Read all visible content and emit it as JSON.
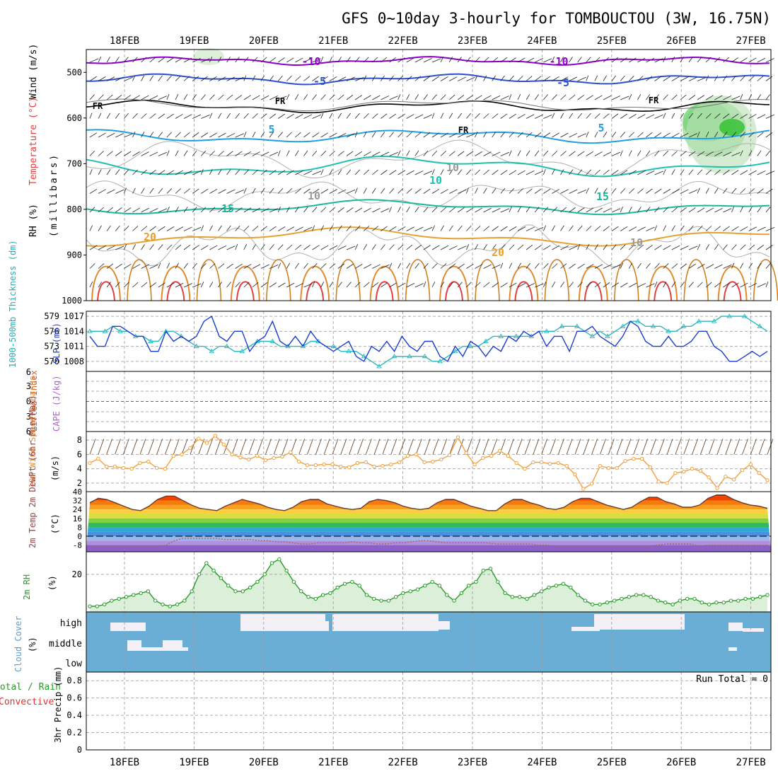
{
  "title": "GFS 0~10day 3-hourly for TOMBOUCTOU (3W, 16.75N)",
  "dates": [
    "18FEB",
    "19FEB",
    "20FEB",
    "21FEB",
    "22FEB",
    "23FEB",
    "24FEB",
    "25FEB",
    "26FEB",
    "27FEB"
  ],
  "colors": {
    "rh_shade": "#a8d5a0",
    "temp_cold": "#8b00c8",
    "temp_blue": "#2c4fd0",
    "temp_cyan": "#1f9fe0",
    "temp_teal": "#20c0b0",
    "temp_orange": "#e8a030",
    "temp_red": "#e02020",
    "slp": "#1a3cd0",
    "thickness": "#28b8c0",
    "wind_speed": "#f0a040",
    "cloud_bg": "#6aaed6",
    "cloud_clear": "#f4f0f8",
    "rh2m": "#2a9a2a",
    "lifted_zero": "#e03030"
  },
  "panels": {
    "upper_air": {
      "label_rh": "RH (%)",
      "label_temp": "Temperature (°C)",
      "label_wind": "Wind (m/s)",
      "label_pressure": "(millibars)",
      "y_ticks": [
        "500",
        "600",
        "700",
        "800",
        "900",
        "1000"
      ],
      "contour_labels": [
        "-10",
        "-10",
        "-5",
        "-5",
        "FR",
        "FR",
        "FR",
        "FR",
        "5",
        "5",
        "10",
        "10",
        "10",
        "15",
        "15",
        "20",
        "20",
        "10"
      ]
    },
    "slp_thickness": {
      "label_thickness": "1000-500mb Thickness (dm)",
      "label_slp": "SLP (mb)",
      "thickness_ticks": [
        "579",
        "576",
        "573",
        "570"
      ],
      "slp_ticks": [
        "1017",
        "1014",
        "1011",
        "1008"
      ]
    },
    "cape_li": {
      "label_li": "Lifted Index",
      "label_cape": "CAPE (J/kg)",
      "ticks": [
        "6",
        "3",
        "0",
        "3",
        "6"
      ]
    },
    "wind10m": {
      "label": "10m Wind Speed & Barbs",
      "unit": "(m/s)",
      "ticks": [
        "8",
        "6",
        "4",
        "2"
      ]
    },
    "temp2m": {
      "label": "2m Temp 2m DewPt (6hr Min/Max)",
      "unit": "(°C)",
      "ticks": [
        "40",
        "32",
        "24",
        "16",
        "8",
        "0",
        "-8"
      ]
    },
    "rh2m": {
      "label": "2m RH",
      "unit": "(%)",
      "ticks": [
        "20"
      ]
    },
    "cloud": {
      "label": "Cloud Cover",
      "unit": "(%)",
      "levels": [
        "high",
        "middle",
        "low"
      ]
    },
    "precip": {
      "label_total": "Total / Rain",
      "label_conv": "Convective",
      "label_axis": "3hr Precip (mm)",
      "ticks": [
        "0.8",
        "0.6",
        "0.4",
        "0.2",
        "0"
      ],
      "run_total": "Run Total = 0"
    }
  },
  "chart_data": [
    {
      "type": "line",
      "title": "1000-500mb Thickness (dm) / SLP (mb)",
      "x_unit": "3-hourly steps from 17FEB 12Z",
      "series": [
        {
          "name": "SLP (mb)",
          "values": [
            1013,
            1011,
            1011,
            1015,
            1015,
            1014,
            1013,
            1013,
            1010,
            1010,
            1014,
            1012,
            1013,
            1012,
            1013,
            1016,
            1017,
            1013,
            1012,
            1014,
            1014,
            1010,
            1012,
            1013,
            1016,
            1012,
            1011,
            1013,
            1011,
            1014,
            1012,
            1011,
            1010,
            1011,
            1012,
            1009,
            1008,
            1011,
            1010,
            1012,
            1010,
            1013,
            1011,
            1010,
            1012,
            1012,
            1009,
            1008,
            1011,
            1009,
            1012,
            1011,
            1009,
            1011,
            1010,
            1013,
            1012,
            1014,
            1013,
            1014,
            1011,
            1013,
            1013,
            1010,
            1014,
            1014,
            1015,
            1013,
            1012,
            1011,
            1013,
            1016,
            1015,
            1012,
            1011,
            1011,
            1013,
            1011,
            1011,
            1012,
            1014,
            1014,
            1011,
            1010,
            1008,
            1008,
            1009,
            1010,
            1009,
            1010
          ]
        },
        {
          "name": "1000-500mb Thickness (dm)",
          "values": [
            576,
            576,
            576,
            577,
            576,
            576,
            575,
            575,
            574,
            574,
            576,
            576,
            575,
            574,
            573,
            573,
            572,
            573,
            573,
            572,
            572,
            573,
            574,
            574,
            574,
            573,
            573,
            573,
            573,
            574,
            574,
            573,
            573,
            572,
            572,
            572,
            571,
            570,
            569,
            570,
            571,
            571,
            571,
            571,
            571,
            570,
            570,
            571,
            572,
            573,
            573,
            573,
            574,
            575,
            575,
            575,
            575,
            575,
            575,
            576,
            576,
            576,
            577,
            577,
            577,
            576,
            575,
            576,
            575,
            576,
            577,
            578,
            578,
            577,
            577,
            577,
            576,
            576,
            577,
            577,
            578,
            578,
            578,
            579,
            579,
            579,
            579,
            578,
            577,
            576
          ]
        }
      ],
      "y_ranges": {
        "SLP (mb)": [
          1006,
          1018
        ],
        "1000-500mb Thickness (dm)": [
          568,
          580
        ]
      }
    },
    {
      "type": "line",
      "title": "10m Wind Speed (m/s)",
      "x_unit": "3-hourly steps from 17FEB 12Z",
      "series": [
        {
          "name": "10m Wind Speed",
          "values": [
            4.8,
            5.4,
            4.3,
            4.3,
            4.1,
            4.0,
            4.8,
            5.0,
            4.1,
            4.0,
            5.8,
            6.0,
            6.9,
            8.2,
            7.6,
            8.6,
            7.4,
            6.0,
            5.6,
            5.3,
            5.8,
            5.2,
            5.5,
            5.7,
            6.3,
            5.0,
            4.5,
            4.5,
            4.6,
            4.6,
            4.3,
            4.2,
            4.8,
            4.9,
            4.3,
            4.4,
            4.6,
            4.9,
            5.8,
            6.0,
            4.9,
            5.0,
            5.3,
            5.9,
            8.4,
            6.2,
            4.6,
            5.5,
            5.8,
            6.5,
            5.8,
            4.8,
            4.0,
            4.9,
            4.9,
            4.7,
            4.8,
            4.4,
            3.2,
            1.2,
            1.9,
            4.4,
            4.1,
            4.1,
            5.1,
            5.4,
            5.4,
            4.2,
            2.2,
            2.0,
            3.4,
            3.6,
            4.0,
            3.7,
            2.8,
            1.3,
            2.9,
            2.5,
            3.8,
            4.6,
            3.4,
            2.4
          ]
        }
      ],
      "ylim": [
        0.8,
        9.2
      ]
    },
    {
      "type": "area",
      "title": "2m Temp (°C)",
      "x_unit": "3-hourly steps from 17FEB 12Z",
      "series": [
        {
          "name": "2m Temp",
          "values": [
            30,
            34,
            33,
            30,
            27,
            24,
            23,
            27,
            33,
            36,
            36,
            32,
            28,
            25,
            24,
            23,
            27,
            30,
            33,
            31,
            29,
            26,
            24,
            23,
            26,
            31,
            33,
            33,
            29,
            27,
            25,
            24,
            25,
            31,
            33,
            32,
            30,
            27,
            25,
            24,
            25,
            30,
            33,
            33,
            30,
            27,
            25,
            23,
            23,
            29,
            33,
            33,
            30,
            28,
            25,
            24,
            26,
            31,
            34,
            34,
            31,
            28,
            26,
            24,
            26,
            31,
            35,
            35,
            31,
            29,
            26,
            26,
            28,
            34,
            37,
            37,
            33,
            30,
            28,
            27,
            25
          ]
        },
        {
          "name": "2m DewPt",
          "values": [
            -9,
            -9,
            -9,
            -9,
            -9,
            -9,
            -9,
            -9,
            -9,
            -8,
            -4,
            -2,
            -2,
            -2,
            -2,
            -2,
            -3,
            -3,
            -3,
            -3,
            -4,
            -4,
            -5,
            -5,
            -6,
            -7,
            -7,
            -6,
            -6,
            -6,
            -6,
            -5,
            -6,
            -6,
            -7,
            -7,
            -6,
            -6,
            -5,
            -4,
            -4,
            -5,
            -6,
            -6,
            -6,
            -6,
            -6,
            -6,
            -7,
            -7,
            -7,
            -7,
            -7,
            -8,
            -8,
            -9,
            -9,
            -9,
            -9,
            -9,
            -9,
            -9,
            -9,
            -9,
            -9,
            -9,
            -9,
            -8,
            -7,
            -7,
            -7,
            -7,
            -9,
            -8,
            -8,
            -8,
            -8,
            -8,
            -8,
            -8,
            -8
          ]
        }
      ],
      "ylim": [
        -14,
        40
      ]
    },
    {
      "type": "line",
      "title": "2m RH (%)",
      "x_unit": "3-hourly steps from 17FEB 12Z",
      "series": [
        {
          "name": "2m RH",
          "values": [
            3,
            3,
            4,
            6,
            7,
            8,
            9,
            10,
            11,
            6,
            4,
            3,
            4,
            6,
            11,
            20,
            26,
            22,
            18,
            14,
            11,
            11,
            13,
            16,
            20,
            26,
            28,
            22,
            16,
            11,
            8,
            7,
            9,
            10,
            13,
            15,
            16,
            14,
            9,
            7,
            6,
            6,
            8,
            10,
            11,
            12,
            14,
            16,
            14,
            9,
            6,
            10,
            14,
            16,
            22,
            23,
            16,
            10,
            8,
            8,
            7,
            9,
            11,
            13,
            14,
            15,
            13,
            9,
            6,
            4,
            4,
            5,
            6,
            7,
            8,
            9,
            9,
            8,
            6,
            5,
            4,
            6,
            7,
            7,
            5,
            4,
            5,
            5,
            6,
            6,
            7,
            7,
            8,
            9
          ]
        }
      ],
      "ylim": [
        0,
        32
      ]
    }
  ]
}
